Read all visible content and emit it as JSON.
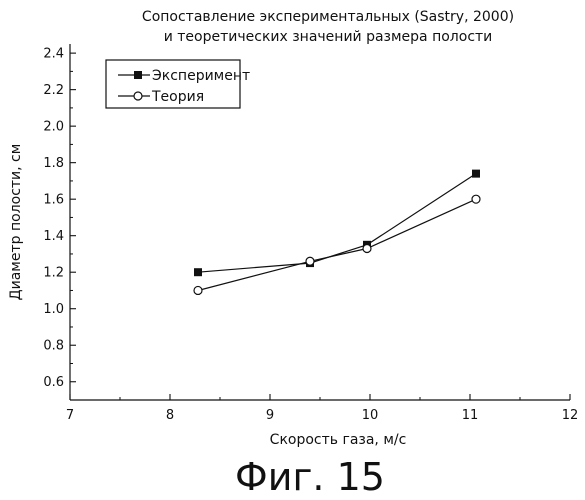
{
  "caption": "Фиг. 15",
  "chart_data": {
    "type": "line",
    "title": "Сопоставление экспериментальных (Sastry, 2000)",
    "subtitle": "и теоретических значений размера полости",
    "xlabel": "Скорость газа, м/с",
    "ylabel": "Диаметр полости, см",
    "xlim": [
      7,
      12
    ],
    "ylim": [
      0.5,
      2.45
    ],
    "xticks": [
      7,
      8,
      9,
      10,
      11,
      12
    ],
    "yticks": [
      0.6,
      0.8,
      1.0,
      1.2,
      1.4,
      1.6,
      1.8,
      2.0,
      2.2,
      2.4
    ],
    "xtick_labels": [
      "7",
      "8",
      "9",
      "10",
      "11",
      "12"
    ],
    "ytick_labels": [
      "0.6",
      "0.8",
      "1.0",
      "1.2",
      "1.4",
      "1.6",
      "1.8",
      "2.0",
      "2.2",
      "2.4"
    ],
    "grid": false,
    "legend_position": "top-left",
    "series": [
      {
        "name": "Эксперимент",
        "marker": "filled-square",
        "color": "#111111",
        "x": [
          8.28,
          9.4,
          9.97,
          11.06
        ],
        "y": [
          1.2,
          1.25,
          1.35,
          1.74
        ]
      },
      {
        "name": "Теория",
        "marker": "open-circle",
        "color": "#111111",
        "x": [
          8.28,
          9.4,
          9.97,
          11.06
        ],
        "y": [
          1.1,
          1.26,
          1.33,
          1.6
        ]
      }
    ]
  }
}
